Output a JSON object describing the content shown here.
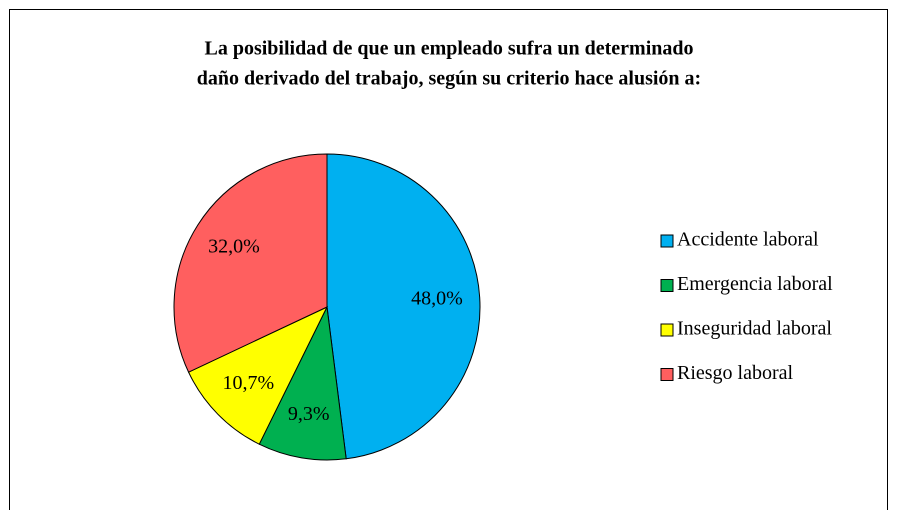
{
  "chart_data": {
    "type": "pie",
    "title": [
      "La posibilidad de que un empleado sufra un determinado",
      "daño derivado del trabajo, según su criterio hace alusión a:"
    ],
    "categories": [
      "Accidente laboral",
      "Emergencia laboral",
      "Inseguridad laboral",
      "Riesgo laboral"
    ],
    "values": [
      48.0,
      9.3,
      10.7,
      32.0
    ],
    "value_labels": [
      "48,0%",
      "9,3%",
      "10,7%",
      "32,0%"
    ],
    "colors": [
      "#00b0f0",
      "#00b050",
      "#ffff00",
      "#ff5f5f"
    ],
    "legend": "right"
  }
}
